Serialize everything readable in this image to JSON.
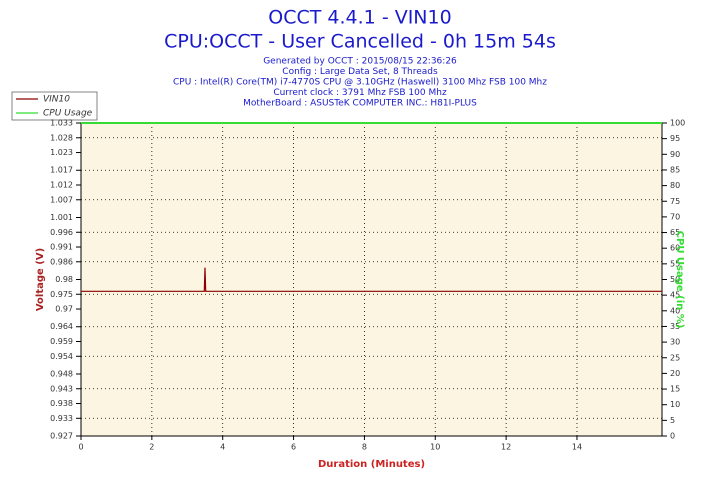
{
  "chart_data": {
    "type": "line",
    "title": "OCCT 4.4.1 - VIN10",
    "subtitle": "CPU:OCCT - User Cancelled - 0h 15m 54s",
    "info_lines": [
      "Generated by OCCT : 2015/08/15 22:36:26",
      "Config : Large Data Set, 8 Threads",
      "CPU : Intel(R) Core(TM) i7-4770S CPU @ 3.10GHz (Haswell) 3100 Mhz FSB 100 Mhz",
      "Current clock : 3791 Mhz FSB 100 Mhz",
      "MotherBoard : ASUSTeK COMPUTER INC.: H81I-PLUS"
    ],
    "xlabel": "Duration (Minutes)",
    "ylabel": "Voltage (V)",
    "y2label": "CPU Usage (in %)",
    "x": [
      0,
      3.48,
      3.5,
      3.52,
      16.4
    ],
    "series": [
      {
        "name": "VIN10",
        "color": "#8b0000",
        "values": [
          0.976,
          0.976,
          0.984,
          0.976,
          0.976
        ]
      },
      {
        "name": "CPU Usage",
        "color": "#33dd33",
        "axis": "y2",
        "values": [
          100,
          100,
          100,
          100,
          100
        ]
      }
    ],
    "xlim": [
      0,
      16.4
    ],
    "xticks": [
      0,
      2,
      4,
      6,
      8,
      10,
      12,
      14
    ],
    "ylim": [
      0.927,
      1.033
    ],
    "yticks": [
      0.927,
      0.933,
      0.938,
      0.943,
      0.948,
      0.954,
      0.959,
      0.964,
      0.97,
      0.975,
      0.98,
      0.986,
      0.991,
      0.996,
      1.001,
      1.007,
      1.012,
      1.017,
      1.023,
      1.028,
      1.033
    ],
    "y2lim": [
      0,
      100
    ],
    "y2ticks": [
      0,
      5,
      10,
      15,
      20,
      25,
      30,
      35,
      40,
      45,
      50,
      55,
      60,
      65,
      70,
      75,
      80,
      85,
      90,
      95,
      100
    ],
    "grid": true
  }
}
